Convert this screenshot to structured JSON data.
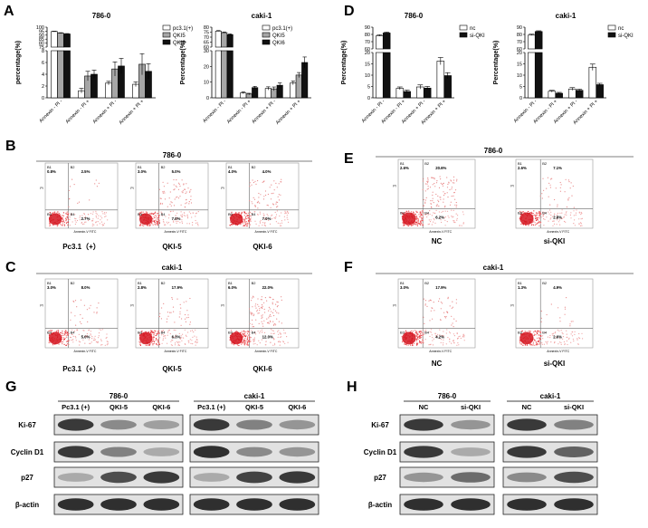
{
  "panels": {
    "A": "A",
    "B": "B",
    "C": "C",
    "D": "D",
    "E": "E",
    "F": "F",
    "G": "G",
    "H": "H"
  },
  "chart_data": [
    {
      "panel": "A",
      "type": "bar",
      "title": "786-0",
      "ylabel": "percentage(%)",
      "categories": [
        "Annexin - PI -",
        "Annexin - PI +",
        "Annexin + PI -",
        "Annexin + PI +"
      ],
      "yticks_low": [
        "0",
        "2",
        "4",
        "6",
        "8"
      ],
      "yticks_high": [
        "75",
        "80",
        "85",
        "90",
        "95",
        "100"
      ],
      "series": [
        {
          "name": "pc3.1(+)",
          "values": [
            94.5,
            1.2,
            2.5,
            2.3
          ],
          "errors": [
            0.5,
            0.4,
            0.3,
            0.4
          ],
          "fill": "#ffffff"
        },
        {
          "name": "QKI5",
          "values": [
            92.5,
            3.7,
            4.9,
            5.7
          ],
          "errors": [
            0.6,
            0.8,
            1.2,
            1.8
          ],
          "fill": "#a6a6a6"
        },
        {
          "name": "QKI6",
          "values": [
            91.5,
            4.0,
            5.4,
            4.5
          ],
          "errors": [
            0.5,
            0.7,
            1.3,
            1.3
          ],
          "fill": "#111111"
        }
      ]
    },
    {
      "panel": "A",
      "type": "bar",
      "title": "caki-1",
      "ylabel": "Percentage(%)",
      "categories": [
        "Annexin - PI -",
        "Annexin - PI +",
        "Annexin + PI -",
        "Annexin + PI +"
      ],
      "yticks_low": [
        "0",
        "10",
        "20",
        "30"
      ],
      "yticks_high": [
        "60",
        "65",
        "70",
        "75",
        "80"
      ],
      "series": [
        {
          "name": "pc3.1(+)",
          "values": [
            76,
            3.2,
            6.0,
            9.5
          ],
          "errors": [
            0.6,
            0.6,
            1.0,
            1.2
          ],
          "fill": "#ffffff"
        },
        {
          "name": "QKI5",
          "values": [
            74.5,
            2.4,
            5.7,
            14.5
          ],
          "errors": [
            0.7,
            0.5,
            1.2,
            1.6
          ],
          "fill": "#a6a6a6"
        },
        {
          "name": "QKI6",
          "values": [
            72.5,
            6.5,
            8.0,
            22.5
          ],
          "errors": [
            0.8,
            0.8,
            1.5,
            3.5
          ],
          "fill": "#111111"
        }
      ]
    },
    {
      "panel": "D",
      "type": "bar",
      "title": "786-0",
      "ylabel": "Percentage(%)",
      "categories": [
        "Annexin - PI -",
        "Annexin - PI +",
        "Annexin + PI -",
        "Annexin + PI +"
      ],
      "yticks_low": [
        "0",
        "5",
        "10",
        "15",
        "20"
      ],
      "yticks_high": [
        "60",
        "70",
        "80",
        "90"
      ],
      "series": [
        {
          "name": "nc",
          "values": [
            78,
            4.2,
            4.8,
            16.2
          ],
          "errors": [
            1.5,
            0.6,
            0.9,
            1.6
          ],
          "fill": "#ffffff"
        },
        {
          "name": "si-QKI",
          "values": [
            82,
            2.8,
            4.3,
            9.8
          ],
          "errors": [
            1.2,
            0.6,
            0.7,
            1.3
          ],
          "fill": "#111111"
        }
      ]
    },
    {
      "panel": "D",
      "type": "bar",
      "title": "caki-1",
      "ylabel": "Percentage(%)",
      "categories": [
        "Annexin - PI -",
        "Annexin - PI +",
        "Annexin + PI -",
        "Annexin + PI +"
      ],
      "yticks_low": [
        "0",
        "5",
        "10",
        "15",
        "20"
      ],
      "yticks_high": [
        "60",
        "70",
        "80",
        "90"
      ],
      "series": [
        {
          "name": "nc",
          "values": [
            79,
            2.9,
            3.9,
            13.5
          ],
          "errors": [
            1.3,
            0.4,
            0.6,
            1.4
          ],
          "fill": "#ffffff"
        },
        {
          "name": "si-QKI",
          "values": [
            84,
            2.0,
            3.3,
            5.8
          ],
          "errors": [
            1.0,
            0.4,
            0.5,
            0.6
          ],
          "fill": "#111111"
        }
      ]
    }
  ],
  "flow": {
    "B": {
      "title": "786-0",
      "plots": [
        {
          "label": "Pc3.1（+）",
          "q": [
            "B1",
            "B2",
            "B3",
            "B4"
          ],
          "pct": [
            "0.8%",
            "2.5%",
            "",
            "2.7%"
          ],
          "density": 0.25
        },
        {
          "label": "QKI-5",
          "q": [
            "B1",
            "B2",
            "B3",
            "B4"
          ],
          "pct": [
            "3.0%",
            "5.0%",
            "",
            "7.0%"
          ],
          "density": 0.6
        },
        {
          "label": "QKI-6",
          "q": [
            "B1",
            "B2",
            "B3",
            "B4"
          ],
          "pct": [
            "4.0%",
            "4.0%",
            "",
            "7.0%"
          ],
          "density": 0.55
        }
      ]
    },
    "C": {
      "title": "caki-1",
      "plots": [
        {
          "label": "Pc3.1（+）",
          "q": [
            "B1",
            "B2",
            "B3",
            "B4"
          ],
          "pct": [
            "3.0%",
            "8.0%",
            "",
            "5.0%"
          ],
          "density": 0.35
        },
        {
          "label": "QKI-5",
          "q": [
            "B1",
            "B2",
            "B3",
            "B4"
          ],
          "pct": [
            "2.8%",
            "17.9%",
            "",
            "6.3%"
          ],
          "density": 0.5
        },
        {
          "label": "QKI-6",
          "q": [
            "B1",
            "B2",
            "B3",
            "B4"
          ],
          "pct": [
            "6.0%",
            "22.0%",
            "",
            "12.0%"
          ],
          "density": 0.75
        }
      ]
    },
    "E": {
      "title": "786-0",
      "plots": [
        {
          "label": "NC",
          "q": [
            "B1",
            "B2",
            "B3",
            "B4"
          ],
          "pct": [
            "2.6%",
            "20.6%",
            "",
            "6.2%"
          ],
          "density": 0.85
        },
        {
          "label": "si-QKI",
          "q": [
            "B1",
            "B2",
            "B3",
            "B4"
          ],
          "pct": [
            "2.6%",
            "7.1%",
            "",
            "2.8%"
          ],
          "density": 0.45
        }
      ]
    },
    "F": {
      "title": "caki-1",
      "plots": [
        {
          "label": "NC",
          "q": [
            "B1",
            "B2",
            "B3",
            "B4"
          ],
          "pct": [
            "3.0%",
            "17.9%",
            "",
            "4.2%"
          ],
          "density": 0.5
        },
        {
          "label": "si-QKI",
          "q": [
            "B1",
            "B2",
            "B3",
            "B4"
          ],
          "pct": [
            "1.3%",
            "4.9%",
            "",
            "2.6%"
          ],
          "density": 0.3
        }
      ]
    },
    "axis_x": "Annexin-V FITC",
    "axis_y": "PI"
  },
  "blots": {
    "G": {
      "rows": [
        "Ki-67",
        "Cyclin D1",
        "p27",
        "β-actin"
      ],
      "groups": [
        {
          "title": "786-0",
          "lanes": [
            "Pc3.1 (+)",
            "QKI-5",
            "QKI-6"
          ],
          "intensity": [
            [
              0.85,
              0.45,
              0.35
            ],
            [
              0.85,
              0.5,
              0.3
            ],
            [
              0.3,
              0.75,
              0.85
            ],
            [
              0.9,
              0.9,
              0.9
            ]
          ]
        },
        {
          "title": "caki-1",
          "lanes": [
            "Pc3.1 (+)",
            "QKI-5",
            "QKI-6"
          ],
          "intensity": [
            [
              0.85,
              0.5,
              0.4
            ],
            [
              0.9,
              0.45,
              0.4
            ],
            [
              0.3,
              0.8,
              0.85
            ],
            [
              0.9,
              0.9,
              0.9
            ]
          ]
        }
      ]
    },
    "H": {
      "rows": [
        "Ki-67",
        "Cyclin D1",
        "p27",
        "β-actin"
      ],
      "groups": [
        {
          "title": "786-0",
          "lanes": [
            "NC",
            "si-QKI"
          ],
          "intensity": [
            [
              0.85,
              0.4
            ],
            [
              0.85,
              0.3
            ],
            [
              0.4,
              0.6
            ],
            [
              0.9,
              0.9
            ]
          ]
        },
        {
          "title": "caki-1",
          "lanes": [
            "NC",
            "si-QKI"
          ],
          "intensity": [
            [
              0.85,
              0.5
            ],
            [
              0.85,
              0.65
            ],
            [
              0.45,
              0.75
            ],
            [
              0.9,
              0.9
            ]
          ]
        }
      ]
    }
  }
}
